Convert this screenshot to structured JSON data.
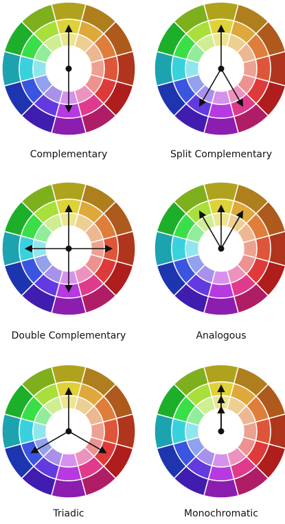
{
  "diagrams": [
    {
      "label": "Complementary"
    },
    {
      "label": "Split Complementary"
    },
    {
      "label": "Double Complementary"
    },
    {
      "label": "Analogous"
    },
    {
      "label": "Triadic"
    },
    {
      "label": "Monochromatic"
    }
  ]
}
